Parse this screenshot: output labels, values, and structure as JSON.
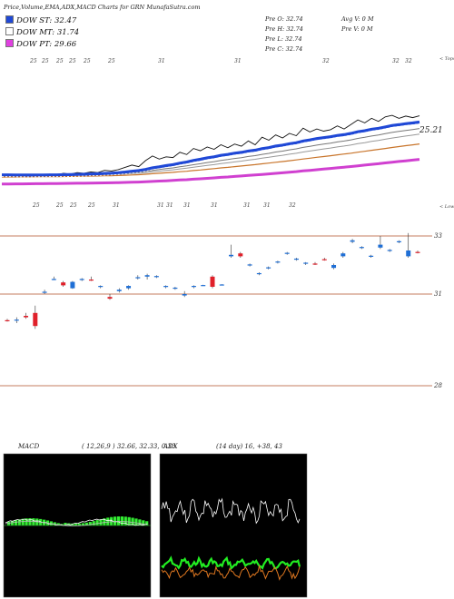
{
  "header": {
    "title": "Price,Volume,EMA,ADX,MACD Charts for GRN  MunafaSutra.com",
    "stats_left": [
      "Pre  O: 32.74",
      "Pre  H: 32.74",
      "Pre  L: 32.74",
      "Pre  C: 32.74"
    ],
    "stats_right": [
      "Avg V: 0  M",
      "Pre  V: 0  M"
    ]
  },
  "legend": [
    {
      "label": "DOW ST: 32.47",
      "color": "#1f48d6"
    },
    {
      "label": "DOW MT: 31.74",
      "color": "#ffffff"
    },
    {
      "label": "DOW PT: 29.66",
      "color": "#e040e0"
    }
  ],
  "colors": {
    "up": "#1f6fd6",
    "down": "#e0202a",
    "ema_short": "#1f48d6",
    "ema_pt": "#d040d0",
    "ema_long": "#c8742a",
    "macd_fill": "#33ee33",
    "adx_green": "#22ee22",
    "adx_orange": "#e07820"
  },
  "chart_data": [
    {
      "type": "line",
      "name": "ema-panel",
      "tags_top": [
        "25",
        "25",
        "25",
        "25",
        "25",
        "25",
        "31",
        "31",
        "32",
        "32",
        "32"
      ],
      "tags_mid": [
        "25",
        "25",
        "25",
        "25",
        "31",
        "31",
        "31",
        "31",
        "31",
        "31",
        "31",
        "32"
      ],
      "right_labels": [
        "< Tops",
        "25.21",
        "< Lows"
      ],
      "series": [
        {
          "name": "price",
          "values": [
            24.9,
            24.9,
            24.8,
            24.9,
            24.8,
            24.9,
            24.9,
            25.0,
            24.9,
            25.1,
            25.0,
            25.2,
            25.1,
            25.3,
            25.2,
            25.5,
            25.4,
            25.6,
            25.9,
            26.2,
            26.0,
            26.8,
            27.4,
            27.0,
            27.3,
            27.2,
            27.9,
            27.6,
            28.4,
            28.1,
            28.6,
            28.3,
            28.9,
            28.5,
            29.0,
            28.7,
            29.4,
            28.9,
            29.9,
            29.5,
            30.2,
            29.8,
            30.4,
            30.1,
            31.1,
            30.6,
            31.0,
            30.7,
            30.9,
            31.4,
            31.0,
            31.6,
            32.2,
            31.8,
            32.4,
            32.0,
            32.6,
            32.8,
            32.4,
            32.7,
            32.5,
            32.74
          ]
        }
      ]
    },
    {
      "type": "candlestick",
      "name": "price-panel",
      "reference_lines": [
        33,
        31,
        28
      ],
      "candles": [
        {
          "o": 30.4,
          "h": 30.45,
          "l": 30.35,
          "c": 30.38
        },
        {
          "o": 30.4,
          "h": 30.5,
          "l": 30.3,
          "c": 30.42
        },
        {
          "o": 30.55,
          "h": 30.65,
          "l": 30.45,
          "c": 30.5
        },
        {
          "o": 30.65,
          "h": 30.9,
          "l": 30.1,
          "c": 30.2
        },
        {
          "o": 31.35,
          "h": 31.45,
          "l": 31.3,
          "c": 31.38
        },
        {
          "o": 31.8,
          "h": 31.9,
          "l": 31.78,
          "c": 31.82
        },
        {
          "o": 31.7,
          "h": 31.75,
          "l": 31.55,
          "c": 31.6
        },
        {
          "o": 31.5,
          "h": 31.75,
          "l": 31.48,
          "c": 31.72
        },
        {
          "o": 31.8,
          "h": 31.85,
          "l": 31.75,
          "c": 31.82
        },
        {
          "o": 31.8,
          "h": 31.9,
          "l": 31.75,
          "c": 31.78
        },
        {
          "o": 31.55,
          "h": 31.6,
          "l": 31.5,
          "c": 31.58
        },
        {
          "o": 31.2,
          "h": 31.3,
          "l": 31.1,
          "c": 31.14
        },
        {
          "o": 31.4,
          "h": 31.5,
          "l": 31.35,
          "c": 31.45
        },
        {
          "o": 31.5,
          "h": 31.6,
          "l": 31.45,
          "c": 31.58
        },
        {
          "o": 31.85,
          "h": 31.95,
          "l": 31.8,
          "c": 31.88
        },
        {
          "o": 31.9,
          "h": 32.0,
          "l": 31.8,
          "c": 31.95
        },
        {
          "o": 31.9,
          "h": 31.95,
          "l": 31.85,
          "c": 31.92
        },
        {
          "o": 31.55,
          "h": 31.6,
          "l": 31.5,
          "c": 31.58
        },
        {
          "o": 31.5,
          "h": 31.55,
          "l": 31.45,
          "c": 31.52
        },
        {
          "o": 31.25,
          "h": 31.4,
          "l": 31.2,
          "c": 31.3
        },
        {
          "o": 31.55,
          "h": 31.6,
          "l": 31.5,
          "c": 31.58
        },
        {
          "o": 31.6,
          "h": 31.62,
          "l": 31.58,
          "c": 31.61
        },
        {
          "o": 31.9,
          "h": 31.95,
          "l": 31.5,
          "c": 31.55
        },
        {
          "o": 31.62,
          "h": 31.64,
          "l": 31.6,
          "c": 31.63
        },
        {
          "o": 32.6,
          "h": 33.0,
          "l": 32.55,
          "c": 32.65
        },
        {
          "o": 32.7,
          "h": 32.75,
          "l": 32.55,
          "c": 32.6
        },
        {
          "o": 32.3,
          "h": 32.35,
          "l": 32.25,
          "c": 32.32
        },
        {
          "o": 32.0,
          "h": 32.05,
          "l": 31.95,
          "c": 32.02
        },
        {
          "o": 32.2,
          "h": 32.25,
          "l": 32.15,
          "c": 32.22
        },
        {
          "o": 32.4,
          "h": 32.45,
          "l": 32.35,
          "c": 32.42
        },
        {
          "o": 32.7,
          "h": 32.75,
          "l": 32.65,
          "c": 32.72
        },
        {
          "o": 32.5,
          "h": 32.55,
          "l": 32.45,
          "c": 32.52
        },
        {
          "o": 32.35,
          "h": 32.4,
          "l": 32.3,
          "c": 32.38
        },
        {
          "o": 32.35,
          "h": 32.4,
          "l": 32.3,
          "c": 32.33
        },
        {
          "o": 32.5,
          "h": 32.55,
          "l": 32.45,
          "c": 32.48
        },
        {
          "o": 32.2,
          "h": 32.35,
          "l": 32.15,
          "c": 32.3
        },
        {
          "o": 32.6,
          "h": 32.75,
          "l": 32.55,
          "c": 32.7
        },
        {
          "o": 33.1,
          "h": 33.2,
          "l": 33.05,
          "c": 33.15
        },
        {
          "o": 32.9,
          "h": 32.95,
          "l": 32.85,
          "c": 32.92
        },
        {
          "o": 32.6,
          "h": 32.65,
          "l": 32.55,
          "c": 32.62
        },
        {
          "o": 32.9,
          "h": 33.3,
          "l": 32.85,
          "c": 33.0
        },
        {
          "o": 32.8,
          "h": 32.85,
          "l": 32.75,
          "c": 32.82
        },
        {
          "o": 33.1,
          "h": 33.15,
          "l": 33.05,
          "c": 33.12
        },
        {
          "o": 32.6,
          "h": 33.4,
          "l": 32.55,
          "c": 32.8
        },
        {
          "o": 32.75,
          "h": 32.8,
          "l": 32.7,
          "c": 32.74
        }
      ]
    },
    {
      "type": "area",
      "name": "macd-panel",
      "label": "MACD",
      "values_text": "( 12,26,9 ) 32.66,  32.33,  0.33"
    },
    {
      "type": "line",
      "name": "adx-panel",
      "label": "ADX",
      "values_text": "(14  day) 16,  +38,  43"
    }
  ]
}
